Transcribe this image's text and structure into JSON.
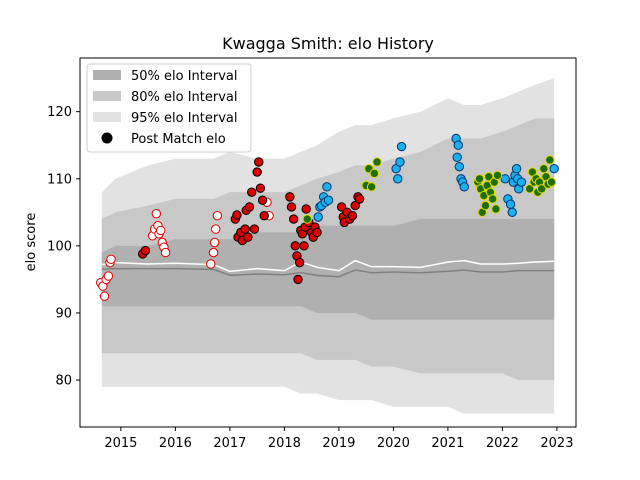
{
  "chart_data": {
    "type": "scatter",
    "title": "Kwagga Smith: elo History",
    "xlabel": "",
    "ylabel": "elo score",
    "xlim": [
      2014.25,
      2023.35
    ],
    "ylim": [
      73,
      128
    ],
    "x_ticks": [
      "2015",
      "2016",
      "2017",
      "2018",
      "2019",
      "2020",
      "2021",
      "2022",
      "2023"
    ],
    "y_ticks": [
      "80",
      "90",
      "100",
      "110",
      "120"
    ],
    "legend_position": "top-left",
    "legend": [
      {
        "label": "50% elo Interval",
        "color": "#b0b0b0"
      },
      {
        "label": "80% elo Interval",
        "color": "#c8c8c8"
      },
      {
        "label": "95% elo Interval",
        "color": "#e2e2e2"
      },
      {
        "label": "Post Match elo",
        "color": "#000000"
      }
    ],
    "colors": {
      "band50": "#b0b0b0",
      "band80": "#c8c8c8",
      "band95": "#e2e2e2",
      "mean_line": "#ffffff",
      "median_line": "#808080",
      "white_fill": "#ffffff",
      "white_edge": "#e00000",
      "red_fill": "#dd0000",
      "red_edge": "#000000",
      "blue_fill": "#1ab0ee",
      "blue_edge": "#00346e",
      "green_fill": "#1e6e0a",
      "green_edge": "#e8d800"
    },
    "bands": {
      "x": [
        2014.65,
        2014.9,
        2015.5,
        2016.0,
        2016.7,
        2017.0,
        2017.5,
        2018.0,
        2018.3,
        2018.6,
        2019.0,
        2019.3,
        2019.6,
        2020.0,
        2020.5,
        2021.0,
        2021.3,
        2021.6,
        2022.0,
        2022.3,
        2022.6,
        2022.95
      ],
      "p95_hi": [
        108,
        110,
        112,
        113,
        113,
        114,
        113,
        113,
        114,
        115,
        117,
        118,
        118,
        119,
        120,
        122,
        121,
        121,
        122,
        123,
        124,
        125
      ],
      "p80_hi": [
        104,
        105,
        106,
        107,
        107,
        108,
        108,
        108,
        109,
        110,
        111,
        112,
        112,
        113,
        114,
        116,
        116,
        116,
        117,
        118,
        119,
        119
      ],
      "p50_hi": [
        99,
        100,
        100,
        101,
        101,
        101,
        102,
        102,
        102,
        103,
        103,
        103,
        103,
        103,
        104,
        104,
        104,
        104,
        104,
        104,
        104,
        104
      ],
      "p50_lo": [
        91,
        91,
        91,
        91,
        91,
        91,
        91,
        91,
        91,
        90,
        90,
        90,
        89,
        89,
        89,
        89,
        89,
        89,
        89,
        89,
        89,
        89
      ],
      "p80_lo": [
        84,
        84,
        84,
        84,
        84,
        84,
        84,
        84,
        84,
        83,
        83,
        83,
        82,
        82,
        81,
        81,
        81,
        81,
        81,
        80,
        80,
        80
      ],
      "p95_lo": [
        79,
        79,
        79,
        79,
        79,
        79,
        79,
        79,
        78,
        78,
        77,
        77,
        77,
        76,
        76,
        76,
        75,
        75,
        75,
        75,
        75,
        75
      ],
      "mean": [
        97.2,
        97.5,
        97.3,
        97.4,
        97.2,
        96.2,
        96.6,
        96.3,
        97.6,
        96.8,
        96.3,
        97.8,
        96.9,
        96.9,
        96.8,
        97.6,
        97.8,
        97.3,
        97.3,
        97.4,
        97.6,
        97.7
      ],
      "median": [
        96.5,
        96.6,
        96.6,
        96.6,
        96.5,
        95.6,
        95.8,
        95.7,
        96.0,
        95.6,
        95.4,
        96.4,
        96.0,
        96.1,
        96.0,
        96.2,
        96.4,
        96.1,
        96.1,
        96.3,
        96.3,
        96.3
      ]
    },
    "series": [
      {
        "style": "white",
        "points": [
          [
            2014.63,
            94.5
          ],
          [
            2014.67,
            94.0
          ],
          [
            2014.7,
            92.5
          ],
          [
            2014.73,
            95.0
          ],
          [
            2014.77,
            95.5
          ],
          [
            2014.8,
            97.5
          ],
          [
            2014.82,
            98.0
          ],
          [
            2015.58,
            101.5
          ],
          [
            2015.62,
            102.5
          ],
          [
            2015.65,
            104.8
          ],
          [
            2015.68,
            103.0
          ],
          [
            2015.7,
            101.8
          ],
          [
            2015.73,
            102.3
          ],
          [
            2015.76,
            100.5
          ],
          [
            2015.79,
            99.8
          ],
          [
            2015.82,
            99.0
          ],
          [
            2016.65,
            97.3
          ],
          [
            2016.7,
            99.0
          ],
          [
            2016.72,
            100.5
          ],
          [
            2016.74,
            102.5
          ],
          [
            2016.77,
            104.5
          ],
          [
            2017.68,
            106.5
          ],
          [
            2017.72,
            104.5
          ]
        ]
      },
      {
        "style": "red",
        "points": [
          [
            2015.4,
            98.8
          ],
          [
            2015.45,
            99.3
          ],
          [
            2017.1,
            104.0
          ],
          [
            2017.13,
            104.6
          ],
          [
            2017.15,
            101.3
          ],
          [
            2017.2,
            102.0
          ],
          [
            2017.23,
            100.8
          ],
          [
            2017.28,
            102.5
          ],
          [
            2017.3,
            105.3
          ],
          [
            2017.33,
            101.3
          ],
          [
            2017.36,
            105.8
          ],
          [
            2017.4,
            108.0
          ],
          [
            2017.45,
            102.5
          ],
          [
            2017.5,
            111.0
          ],
          [
            2017.53,
            112.5
          ],
          [
            2017.56,
            108.6
          ],
          [
            2017.6,
            106.8
          ],
          [
            2017.63,
            104.5
          ],
          [
            2018.1,
            107.3
          ],
          [
            2018.13,
            105.8
          ],
          [
            2018.17,
            104.0
          ],
          [
            2018.2,
            100.0
          ],
          [
            2018.23,
            98.5
          ],
          [
            2018.25,
            95.0
          ],
          [
            2018.28,
            97.5
          ],
          [
            2018.3,
            102.3
          ],
          [
            2018.33,
            101.8
          ],
          [
            2018.36,
            100.0
          ],
          [
            2018.38,
            102.8
          ],
          [
            2018.4,
            105.5
          ],
          [
            2018.45,
            103.5
          ],
          [
            2018.5,
            102.0
          ],
          [
            2018.53,
            101.3
          ],
          [
            2018.56,
            102.8
          ],
          [
            2018.6,
            102.0
          ],
          [
            2019.05,
            105.8
          ],
          [
            2019.08,
            104.3
          ],
          [
            2019.1,
            103.5
          ],
          [
            2019.15,
            105.0
          ],
          [
            2019.2,
            104.0
          ],
          [
            2019.25,
            104.5
          ],
          [
            2019.3,
            106.0
          ],
          [
            2019.35,
            107.3
          ],
          [
            2019.38,
            107.0
          ]
        ]
      },
      {
        "style": "blue",
        "points": [
          [
            2018.62,
            104.3
          ],
          [
            2018.65,
            105.8
          ],
          [
            2018.68,
            106.0
          ],
          [
            2018.72,
            107.3
          ],
          [
            2018.75,
            106.5
          ],
          [
            2018.78,
            108.8
          ],
          [
            2018.81,
            106.8
          ],
          [
            2020.05,
            111.5
          ],
          [
            2020.08,
            110.0
          ],
          [
            2020.12,
            112.5
          ],
          [
            2020.15,
            114.8
          ],
          [
            2021.15,
            116.0
          ],
          [
            2021.17,
            113.2
          ],
          [
            2021.19,
            115.0
          ],
          [
            2021.21,
            111.8
          ],
          [
            2021.24,
            110.0
          ],
          [
            2021.27,
            109.5
          ],
          [
            2021.3,
            108.8
          ],
          [
            2022.05,
            110.0
          ],
          [
            2022.1,
            107.0
          ],
          [
            2022.15,
            106.2
          ],
          [
            2022.18,
            105.0
          ],
          [
            2022.2,
            109.5
          ],
          [
            2022.23,
            110.5
          ],
          [
            2022.26,
            111.5
          ],
          [
            2022.28,
            110.0
          ],
          [
            2022.3,
            108.5
          ],
          [
            2022.35,
            109.5
          ],
          [
            2022.95,
            111.5
          ]
        ]
      },
      {
        "style": "green",
        "points": [
          [
            2018.42,
            104.0
          ],
          [
            2019.5,
            109.0
          ],
          [
            2019.55,
            111.5
          ],
          [
            2019.6,
            108.8
          ],
          [
            2019.65,
            110.8
          ],
          [
            2019.7,
            112.5
          ],
          [
            2021.55,
            109.5
          ],
          [
            2021.58,
            110.0
          ],
          [
            2021.6,
            108.5
          ],
          [
            2021.63,
            105.0
          ],
          [
            2021.66,
            107.5
          ],
          [
            2021.69,
            106.0
          ],
          [
            2021.72,
            109.0
          ],
          [
            2021.75,
            110.3
          ],
          [
            2021.78,
            108.0
          ],
          [
            2021.82,
            107.0
          ],
          [
            2021.85,
            109.5
          ],
          [
            2021.88,
            105.5
          ],
          [
            2021.91,
            110.5
          ],
          [
            2022.5,
            108.5
          ],
          [
            2022.55,
            111.0
          ],
          [
            2022.58,
            109.5
          ],
          [
            2022.62,
            110.0
          ],
          [
            2022.65,
            108.0
          ],
          [
            2022.68,
            109.5
          ],
          [
            2022.72,
            108.5
          ],
          [
            2022.76,
            111.5
          ],
          [
            2022.8,
            110.3
          ],
          [
            2022.84,
            109.2
          ],
          [
            2022.87,
            112.8
          ],
          [
            2022.9,
            109.5
          ]
        ]
      }
    ]
  }
}
